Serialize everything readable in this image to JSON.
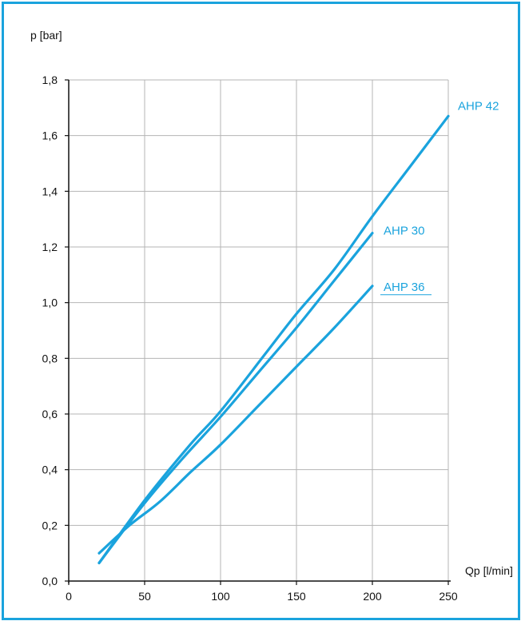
{
  "colors": {
    "frame": "#1aa3dd",
    "series": "#1aa3dd",
    "grid": "#b4b4b4",
    "axis": "#111111"
  },
  "chart_data": {
    "type": "line",
    "title": "",
    "xlabel": "Qp [l/min]",
    "ylabel": "p [bar]",
    "xlim": [
      0,
      250
    ],
    "ylim": [
      0.0,
      1.8
    ],
    "x_ticks": [
      0,
      50,
      100,
      150,
      200,
      250
    ],
    "y_ticks": [
      0.0,
      0.2,
      0.4,
      0.6,
      0.8,
      1.0,
      1.2,
      1.4,
      1.6,
      1.8
    ],
    "x_tick_labels": [
      "0",
      "50",
      "100",
      "150",
      "200",
      "250"
    ],
    "y_tick_labels": [
      "0,0",
      "0,2",
      "0,4",
      "0,6",
      "0,8",
      "1,0",
      "1,2",
      "1,4",
      "1,6",
      "1,8"
    ],
    "grid": true,
    "series": [
      {
        "name": "AHP 42",
        "points": [
          [
            20,
            0.065
          ],
          [
            50,
            0.29
          ],
          [
            80,
            0.49
          ],
          [
            100,
            0.61
          ],
          [
            130,
            0.82
          ],
          [
            150,
            0.96
          ],
          [
            175,
            1.12
          ],
          [
            200,
            1.31
          ],
          [
            225,
            1.49
          ],
          [
            250,
            1.67
          ]
        ]
      },
      {
        "name": "AHP 30",
        "points": [
          [
            20,
            0.065
          ],
          [
            50,
            0.28
          ],
          [
            75,
            0.44
          ],
          [
            100,
            0.59
          ],
          [
            125,
            0.75
          ],
          [
            150,
            0.91
          ],
          [
            175,
            1.08
          ],
          [
            200,
            1.25
          ]
        ]
      },
      {
        "name": "AHP 36",
        "points": [
          [
            20,
            0.1
          ],
          [
            40,
            0.2
          ],
          [
            60,
            0.285
          ],
          [
            80,
            0.39
          ],
          [
            100,
            0.49
          ],
          [
            125,
            0.63
          ],
          [
            150,
            0.77
          ],
          [
            175,
            0.91
          ],
          [
            200,
            1.06
          ]
        ]
      }
    ]
  }
}
